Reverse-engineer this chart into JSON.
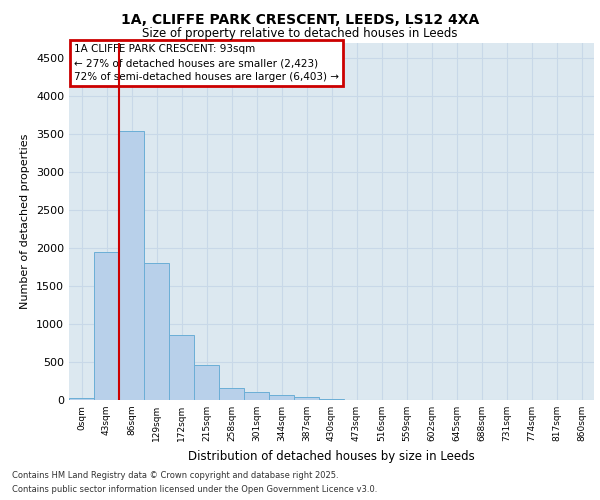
{
  "title_line1": "1A, CLIFFE PARK CRESCENT, LEEDS, LS12 4XA",
  "title_line2": "Size of property relative to detached houses in Leeds",
  "xlabel": "Distribution of detached houses by size in Leeds",
  "ylabel": "Number of detached properties",
  "bar_labels": [
    "0sqm",
    "43sqm",
    "86sqm",
    "129sqm",
    "172sqm",
    "215sqm",
    "258sqm",
    "301sqm",
    "344sqm",
    "387sqm",
    "430sqm",
    "473sqm",
    "516sqm",
    "559sqm",
    "602sqm",
    "645sqm",
    "688sqm",
    "731sqm",
    "774sqm",
    "817sqm",
    "860sqm"
  ],
  "bar_values": [
    30,
    1940,
    3530,
    1800,
    850,
    460,
    160,
    100,
    60,
    40,
    15,
    5,
    2,
    1,
    0,
    0,
    0,
    0,
    0,
    0,
    0
  ],
  "bar_color": "#b8d0ea",
  "bar_edge_color": "#6baed6",
  "annotation_text": "1A CLIFFE PARK CRESCENT: 93sqm\n← 27% of detached houses are smaller (2,423)\n72% of semi-detached houses are larger (6,403) →",
  "annotation_box_color": "#ffffff",
  "annotation_box_edgecolor": "#cc0000",
  "vline_x": 1.5,
  "vline_color": "#cc0000",
  "ylim": [
    0,
    4700
  ],
  "yticks": [
    0,
    500,
    1000,
    1500,
    2000,
    2500,
    3000,
    3500,
    4000,
    4500
  ],
  "grid_color": "#c8d8e8",
  "bg_color": "#dce8f0",
  "footer_line1": "Contains HM Land Registry data © Crown copyright and database right 2025.",
  "footer_line2": "Contains public sector information licensed under the Open Government Licence v3.0."
}
